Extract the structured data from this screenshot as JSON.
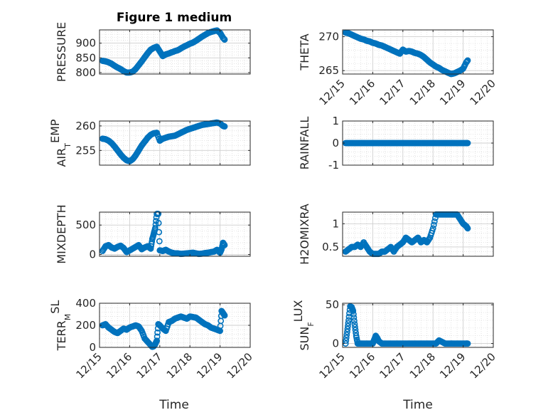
{
  "figure": {
    "title": "Figure 1 medium"
  },
  "colors": {
    "marker": "#0072BD",
    "axes": "#262626",
    "grid": "#d9d9d9",
    "background": "#ffffff"
  },
  "chart_data": [
    {
      "type": "scatter",
      "ylabel": "PRESSURE",
      "ylim": [
        795,
        945
      ],
      "yticks": [
        800,
        850,
        900
      ],
      "xlim": [
        "12/15",
        "12/20"
      ],
      "xticks": [
        "12/15",
        "12/16",
        "12/17",
        "12/18",
        "12/19",
        "12/20"
      ],
      "show_xticklabels": false,
      "grid": true,
      "x": [
        15.1,
        15.2,
        15.3,
        15.4,
        15.5,
        15.6,
        15.7,
        15.8,
        15.9,
        16.0,
        16.1,
        16.2,
        16.3,
        16.4,
        16.5,
        16.6,
        16.7,
        16.8,
        16.9,
        17.0,
        17.1,
        17.2,
        17.3,
        17.4,
        17.5,
        17.6,
        17.7,
        17.8,
        17.9,
        18.0,
        18.1,
        18.2,
        18.3,
        18.4,
        18.5,
        18.6,
        18.7,
        18.8,
        18.9,
        19.0,
        19.1,
        19.15
      ],
      "y": [
        840,
        838,
        835,
        830,
        823,
        817,
        812,
        805,
        800,
        800,
        803,
        812,
        825,
        838,
        852,
        866,
        878,
        884,
        888,
        872,
        856,
        862,
        865,
        869,
        873,
        876,
        882,
        888,
        893,
        898,
        902,
        908,
        915,
        922,
        928,
        934,
        938,
        941,
        943,
        935,
        918,
        912
      ]
    },
    {
      "type": "scatter",
      "ylabel": "THETA",
      "ylim": [
        264.5,
        271
      ],
      "yticks": [
        265,
        270
      ],
      "xlim": [
        "12/15",
        "12/20"
      ],
      "xticks": [
        "12/15",
        "12/16",
        "12/17",
        "12/18",
        "12/19",
        "12/20"
      ],
      "show_xticklabels": true,
      "grid": true,
      "x": [
        15.1,
        15.2,
        15.3,
        15.4,
        15.5,
        15.6,
        15.7,
        15.8,
        15.9,
        16.0,
        16.1,
        16.2,
        16.3,
        16.4,
        16.5,
        16.6,
        16.7,
        16.8,
        16.9,
        17.0,
        17.1,
        17.2,
        17.3,
        17.4,
        17.5,
        17.6,
        17.7,
        17.8,
        17.9,
        18.0,
        18.1,
        18.2,
        18.3,
        18.4,
        18.5,
        18.6,
        18.7,
        18.8,
        18.9,
        19.0,
        19.1,
        19.15
      ],
      "y": [
        270.6,
        270.5,
        270.3,
        270.1,
        269.9,
        269.7,
        269.6,
        269.4,
        269.3,
        269.1,
        269.0,
        268.8,
        268.7,
        268.5,
        268.3,
        268.1,
        267.9,
        267.7,
        267.5,
        268.1,
        267.8,
        267.9,
        267.8,
        267.6,
        267.5,
        267.3,
        267.0,
        266.6,
        266.2,
        265.9,
        265.6,
        265.4,
        265.1,
        264.9,
        264.7,
        264.5,
        264.6,
        264.8,
        265.0,
        265.3,
        266.2,
        266.5
      ]
    },
    {
      "type": "scatter",
      "ylabel": "AIR_TEMP",
      "ylim": [
        252,
        261
      ],
      "yticks": [
        255,
        260
      ],
      "xlim": [
        "12/15",
        "12/20"
      ],
      "xticks": [
        "12/15",
        "12/16",
        "12/17",
        "12/18",
        "12/19",
        "12/20"
      ],
      "show_xticklabels": false,
      "grid": true,
      "x": [
        15.1,
        15.2,
        15.3,
        15.4,
        15.5,
        15.6,
        15.7,
        15.8,
        15.9,
        16.0,
        16.1,
        16.2,
        16.3,
        16.4,
        16.5,
        16.6,
        16.7,
        16.8,
        16.9,
        17.0,
        17.1,
        17.2,
        17.3,
        17.4,
        17.5,
        17.6,
        17.7,
        17.8,
        17.9,
        18.0,
        18.1,
        18.2,
        18.3,
        18.4,
        18.5,
        18.6,
        18.7,
        18.8,
        18.9,
        19.0,
        19.1,
        19.15
      ],
      "y": [
        257.4,
        257.3,
        257.0,
        256.5,
        255.8,
        255.0,
        254.2,
        253.5,
        253.0,
        252.8,
        253.2,
        254.0,
        255.0,
        256.0,
        256.8,
        257.6,
        258.2,
        258.5,
        258.6,
        257.0,
        257.4,
        257.6,
        257.8,
        257.9,
        258.0,
        258.3,
        258.6,
        258.9,
        259.2,
        259.4,
        259.6,
        259.8,
        260.0,
        260.2,
        260.3,
        260.4,
        260.5,
        260.6,
        260.7,
        260.5,
        260.0,
        259.9
      ]
    },
    {
      "type": "scatter",
      "ylabel": "RAINFALL",
      "ylim": [
        -1,
        1
      ],
      "yticks": [
        -1,
        0,
        1
      ],
      "xlim": [
        "12/15",
        "12/20"
      ],
      "xticks": [
        "12/15",
        "12/16",
        "12/17",
        "12/18",
        "12/19",
        "12/20"
      ],
      "show_xticklabels": false,
      "grid": true,
      "x": [
        15.1,
        15.2,
        15.3,
        15.4,
        15.5,
        15.6,
        15.7,
        15.8,
        15.9,
        16.0,
        16.1,
        16.2,
        16.3,
        16.4,
        16.5,
        16.6,
        16.7,
        16.8,
        16.9,
        17.0,
        17.1,
        17.2,
        17.3,
        17.4,
        17.5,
        17.6,
        17.7,
        17.8,
        17.9,
        18.0,
        18.1,
        18.2,
        18.3,
        18.4,
        18.5,
        18.6,
        18.7,
        18.8,
        18.9,
        19.0,
        19.1,
        19.15
      ],
      "y": [
        0,
        0,
        0,
        0,
        0,
        0,
        0,
        0,
        0,
        0,
        0,
        0,
        0,
        0,
        0,
        0,
        0,
        0,
        0,
        0,
        0,
        0,
        0,
        0,
        0,
        0,
        0,
        0,
        0,
        0,
        0,
        0,
        0,
        0,
        0,
        0,
        0,
        0,
        0,
        0,
        0,
        0
      ]
    },
    {
      "type": "scatter",
      "ylabel": "MIXDEPTH",
      "ylim": [
        -30,
        720
      ],
      "yticks": [
        0,
        500
      ],
      "xlim": [
        "12/15",
        "12/20"
      ],
      "xticks": [
        "12/15",
        "12/16",
        "12/17",
        "12/18",
        "12/19",
        "12/20"
      ],
      "show_xticklabels": false,
      "grid": true,
      "x": [
        15.1,
        15.2,
        15.3,
        15.4,
        15.5,
        15.6,
        15.7,
        15.8,
        15.9,
        16.0,
        16.1,
        16.2,
        16.3,
        16.4,
        16.5,
        16.6,
        16.7,
        16.75,
        16.8,
        16.85,
        16.9,
        16.95,
        17.0,
        17.1,
        17.2,
        17.3,
        17.4,
        17.5,
        17.6,
        17.7,
        17.8,
        17.9,
        18.0,
        18.1,
        18.2,
        18.3,
        18.4,
        18.5,
        18.6,
        18.7,
        18.8,
        18.9,
        19.0,
        19.05,
        19.1,
        19.15
      ],
      "y": [
        60,
        140,
        160,
        120,
        100,
        130,
        150,
        110,
        40,
        70,
        100,
        130,
        160,
        90,
        120,
        140,
        100,
        260,
        350,
        450,
        690,
        690,
        70,
        60,
        80,
        50,
        30,
        20,
        20,
        10,
        15,
        20,
        25,
        30,
        20,
        10,
        15,
        25,
        30,
        40,
        50,
        80,
        30,
        90,
        200,
        160
      ]
    },
    {
      "type": "scatter",
      "ylabel": "H2OMIXRA",
      "ylim": [
        0.3,
        1.25
      ],
      "yticks": [
        0.5,
        1
      ],
      "xlim": [
        "12/15",
        "12/20"
      ],
      "xticks": [
        "12/15",
        "12/16",
        "12/17",
        "12/18",
        "12/19",
        "12/20"
      ],
      "show_xticklabels": false,
      "grid": true,
      "x": [
        15.1,
        15.2,
        15.3,
        15.4,
        15.5,
        15.6,
        15.7,
        15.8,
        15.9,
        16.0,
        16.1,
        16.2,
        16.3,
        16.4,
        16.5,
        16.6,
        16.7,
        16.8,
        16.9,
        17.0,
        17.1,
        17.2,
        17.3,
        17.4,
        17.5,
        17.6,
        17.7,
        17.8,
        17.9,
        18.0,
        18.1,
        18.2,
        18.3,
        18.4,
        18.5,
        18.6,
        18.7,
        18.8,
        18.9,
        19.0,
        19.1,
        19.15
      ],
      "y": [
        0.4,
        0.45,
        0.5,
        0.5,
        0.55,
        0.5,
        0.6,
        0.5,
        0.4,
        0.35,
        0.35,
        0.35,
        0.4,
        0.4,
        0.45,
        0.5,
        0.4,
        0.5,
        0.55,
        0.6,
        0.7,
        0.65,
        0.6,
        0.65,
        0.7,
        0.6,
        0.65,
        0.6,
        0.7,
        0.9,
        1.2,
        1.2,
        1.2,
        1.2,
        1.2,
        1.2,
        1.2,
        1.2,
        1.1,
        1.0,
        0.95,
        0.9
      ]
    },
    {
      "type": "scatter",
      "ylabel": "TERR_MSL",
      "ylim": [
        0,
        400
      ],
      "yticks": [
        0,
        200,
        400
      ],
      "xlim": [
        "12/15",
        "12/20"
      ],
      "xticks": [
        "12/15",
        "12/16",
        "12/17",
        "12/18",
        "12/19",
        "12/20"
      ],
      "show_xticklabels": true,
      "grid": true,
      "x": [
        15.1,
        15.2,
        15.3,
        15.4,
        15.5,
        15.6,
        15.7,
        15.8,
        15.9,
        16.0,
        16.1,
        16.2,
        16.3,
        16.4,
        16.5,
        16.6,
        16.7,
        16.75,
        16.8,
        16.85,
        16.9,
        16.95,
        17.0,
        17.1,
        17.2,
        17.3,
        17.4,
        17.5,
        17.6,
        17.7,
        17.8,
        17.9,
        18.0,
        18.1,
        18.2,
        18.3,
        18.4,
        18.5,
        18.6,
        18.7,
        18.8,
        18.9,
        19.0,
        19.05,
        19.1,
        19.15
      ],
      "y": [
        200,
        210,
        180,
        160,
        140,
        130,
        150,
        170,
        160,
        180,
        190,
        200,
        190,
        150,
        80,
        50,
        20,
        5,
        10,
        30,
        60,
        210,
        200,
        170,
        150,
        230,
        240,
        260,
        270,
        280,
        270,
        260,
        280,
        275,
        270,
        250,
        230,
        210,
        200,
        180,
        170,
        160,
        150,
        330,
        310,
        290
      ]
    },
    {
      "type": "scatter",
      "ylabel": "SUN_FLUX",
      "ylim": [
        -5,
        52
      ],
      "yticks": [
        0,
        50
      ],
      "xlim": [
        "12/15",
        "12/20"
      ],
      "xticks": [
        "12/15",
        "12/16",
        "12/17",
        "12/18",
        "12/19",
        "12/20"
      ],
      "show_xticklabels": true,
      "grid": true,
      "x": [
        15.1,
        15.15,
        15.2,
        15.25,
        15.3,
        15.35,
        15.4,
        15.45,
        15.5,
        15.6,
        15.7,
        15.8,
        15.9,
        16.0,
        16.05,
        16.1,
        16.15,
        16.2,
        16.3,
        16.4,
        16.5,
        16.6,
        16.7,
        16.8,
        16.9,
        17.0,
        17.1,
        17.2,
        17.3,
        17.4,
        17.5,
        17.6,
        17.7,
        17.8,
        17.9,
        18.0,
        18.1,
        18.2,
        18.3,
        18.4,
        18.5,
        18.6,
        18.7,
        18.8,
        18.9,
        19.0,
        19.1,
        19.15
      ],
      "y": [
        0,
        15,
        30,
        48,
        47,
        42,
        25,
        10,
        0,
        0,
        0,
        0,
        0,
        0,
        5,
        10,
        7,
        3,
        0,
        0,
        0,
        0,
        0,
        0,
        0,
        0,
        0,
        0,
        0,
        0,
        0,
        0,
        0,
        0,
        0,
        0,
        0,
        4,
        2,
        0,
        0,
        0,
        0,
        0,
        0,
        0,
        0,
        0
      ]
    }
  ],
  "xlabels": [
    "Time",
    "Time"
  ]
}
